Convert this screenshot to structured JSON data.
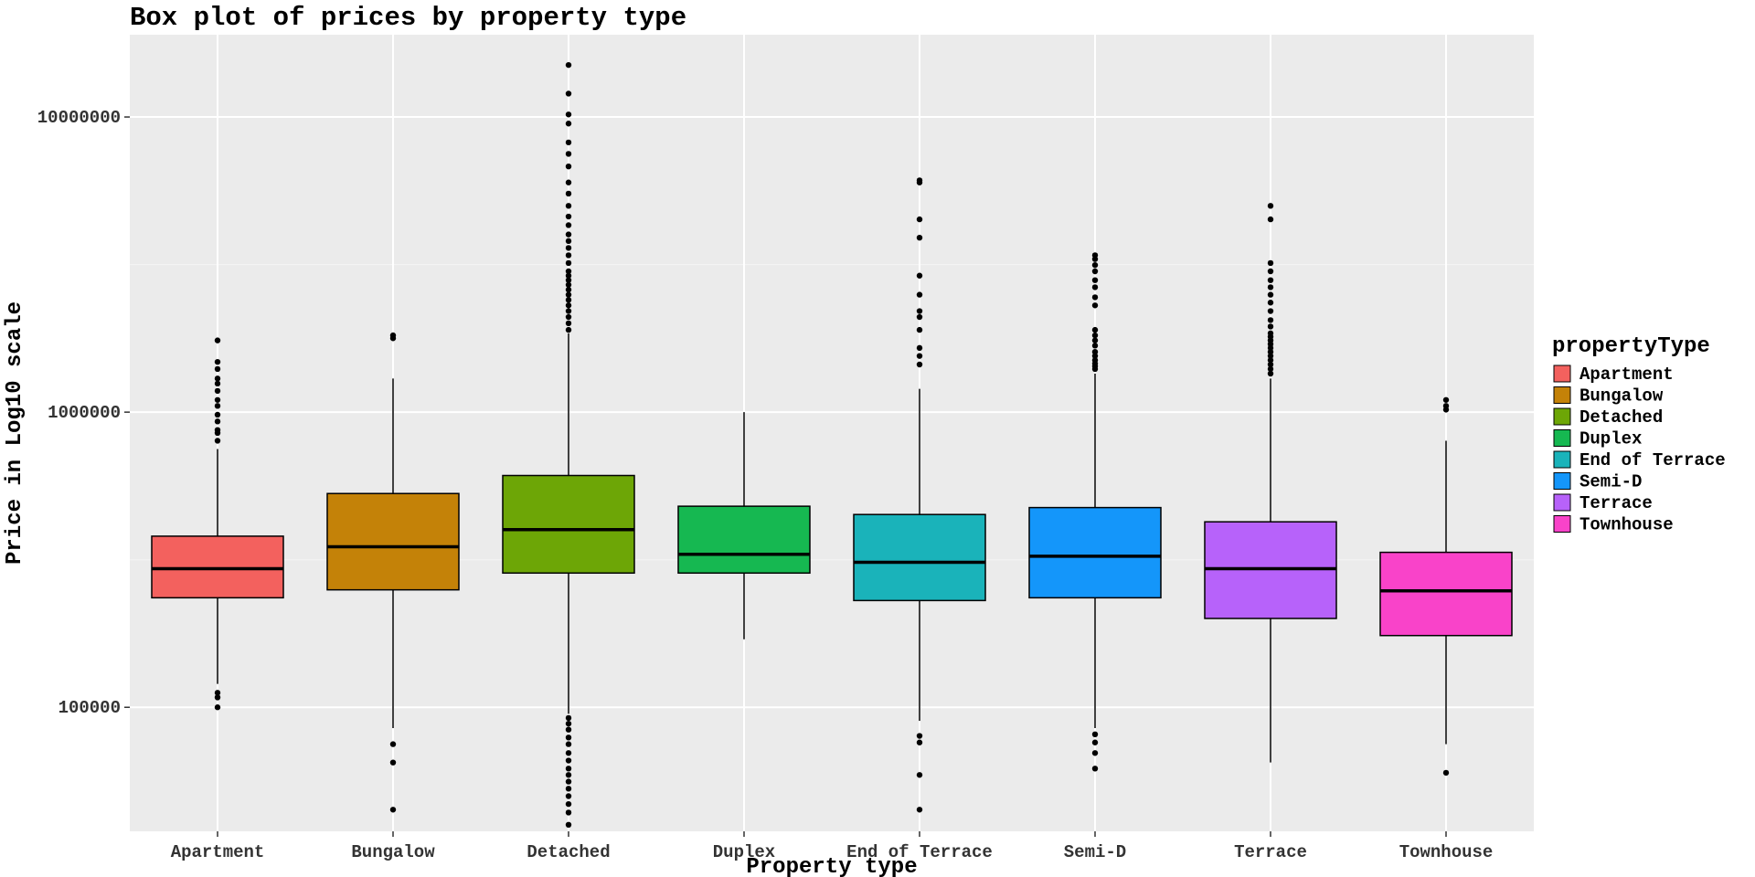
{
  "chart_data": {
    "type": "box",
    "title": "Box plot of prices by property type",
    "xlabel": "Property type",
    "ylabel": "Price in Log10 scale",
    "y_scale": "log10",
    "ylim": [
      38000,
      19000000
    ],
    "y_ticks": [
      100000,
      1000000,
      10000000
    ],
    "y_tick_labels": [
      "100000",
      "1000000",
      "10000000"
    ],
    "grid": true,
    "legend_title": "propertyType",
    "legend_position": "right",
    "categories": [
      "Apartment",
      "Bungalow",
      "Detached",
      "Duplex",
      "End of Terrace",
      "Semi-D",
      "Terrace",
      "Townhouse"
    ],
    "colors": [
      "#F8766D",
      "#C49A00",
      "#53B400",
      "#00C094",
      "#00B6EB",
      "#00A6FF",
      "#A58AFF",
      "#FB61D7"
    ],
    "fill_colors": [
      "#F3615E",
      "#C48208",
      "#6DA606",
      "#16B851",
      "#1AB3BA",
      "#1496FA",
      "#B762FA",
      "#F943C9"
    ],
    "boxes": [
      {
        "category": "Apartment",
        "whisker_low": 120000,
        "q1": 235000,
        "median": 295000,
        "q3": 380000,
        "whisker_high": 750000,
        "outliers": [
          100000,
          108000,
          112000,
          800000,
          850000,
          870000,
          930000,
          980000,
          1050000,
          1100000,
          1180000,
          1250000,
          1300000,
          1400000,
          1480000,
          1750000
        ]
      },
      {
        "category": "Bungalow",
        "whisker_low": 85000,
        "q1": 250000,
        "median": 350000,
        "q3": 530000,
        "whisker_high": 1300000,
        "outliers": [
          45000,
          65000,
          75000,
          1780000,
          1820000
        ]
      },
      {
        "category": "Detached",
        "whisker_low": 95000,
        "q1": 285000,
        "median": 400000,
        "q3": 610000,
        "whisker_high": 1850000,
        "outliers": [
          40000,
          44000,
          47000,
          50000,
          53000,
          56000,
          59000,
          62000,
          66000,
          70000,
          75000,
          79000,
          84000,
          88000,
          92000,
          1900000,
          2000000,
          2100000,
          2200000,
          2300000,
          2400000,
          2500000,
          2600000,
          2700000,
          2800000,
          2900000,
          3000000,
          3200000,
          3400000,
          3600000,
          3800000,
          4000000,
          4300000,
          4600000,
          5000000,
          5500000,
          6000000,
          6800000,
          7500000,
          8200000,
          9500000,
          10200000,
          12000000,
          15000000
        ]
      },
      {
        "category": "Duplex",
        "whisker_low": 170000,
        "q1": 285000,
        "median": 330000,
        "q3": 480000,
        "whisker_high": 1000000,
        "outliers": []
      },
      {
        "category": "End of Terrace",
        "whisker_low": 90000,
        "q1": 230000,
        "median": 310000,
        "q3": 450000,
        "whisker_high": 1200000,
        "outliers": [
          45000,
          59000,
          76000,
          80000,
          1450000,
          1550000,
          1650000,
          1900000,
          2100000,
          2200000,
          2500000,
          2900000,
          3900000,
          4500000,
          6000000,
          6100000
        ]
      },
      {
        "category": "Semi-D",
        "whisker_low": 85000,
        "q1": 235000,
        "median": 325000,
        "q3": 475000,
        "whisker_high": 1350000,
        "outliers": [
          62000,
          70000,
          76000,
          81000,
          1400000,
          1430000,
          1460000,
          1500000,
          1550000,
          1600000,
          1680000,
          1750000,
          1820000,
          1900000,
          2300000,
          2450000,
          2650000,
          2800000,
          3000000,
          3150000,
          3300000,
          3400000
        ]
      },
      {
        "category": "Terrace",
        "whisker_low": 65000,
        "q1": 200000,
        "median": 295000,
        "q3": 425000,
        "whisker_high": 1300000,
        "outliers": [
          1350000,
          1400000,
          1450000,
          1500000,
          1550000,
          1600000,
          1650000,
          1700000,
          1750000,
          1800000,
          1850000,
          1950000,
          2050000,
          2200000,
          2350000,
          2500000,
          2650000,
          2800000,
          3000000,
          3200000,
          4500000,
          5000000
        ]
      },
      {
        "category": "Townhouse",
        "whisker_low": 75000,
        "q1": 175000,
        "median": 248000,
        "q3": 335000,
        "whisker_high": 800000,
        "outliers": [
          60000,
          1020000,
          1050000,
          1100000
        ]
      }
    ]
  }
}
